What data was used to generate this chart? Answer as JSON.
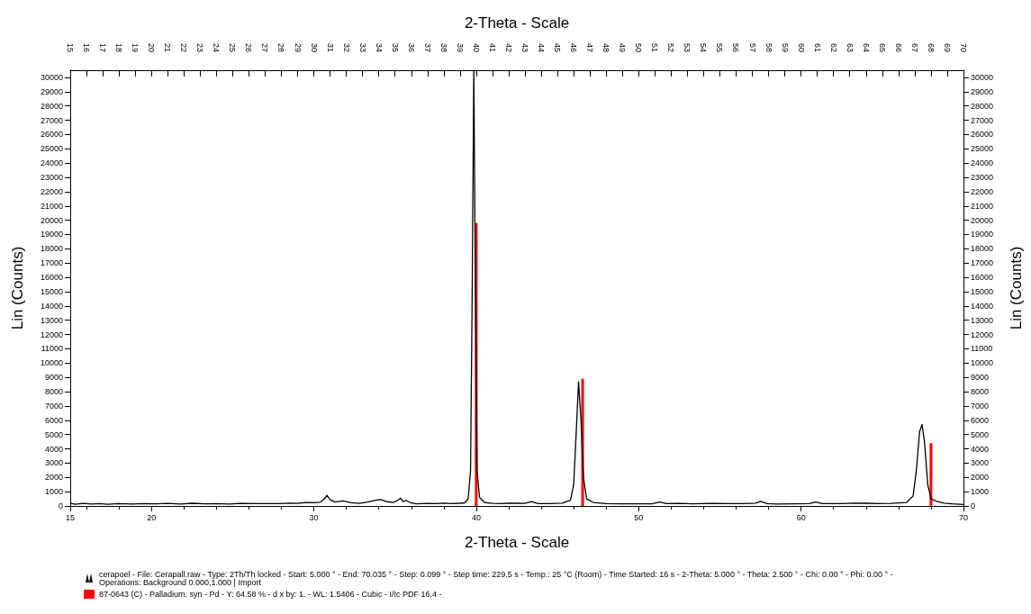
{
  "chart_data": {
    "type": "line",
    "x2label": "2-Theta - Scale",
    "xlabel": "2-Theta - Scale",
    "ylabel": "Lin (Counts)",
    "y2label": "Lin (Counts)",
    "xlim": [
      15,
      70
    ],
    "xticks": [
      15,
      20,
      30,
      40,
      50,
      60,
      70
    ],
    "x2lim": [
      15,
      70
    ],
    "x2ticks": [
      15,
      16,
      17,
      18,
      19,
      20,
      21,
      22,
      23,
      24,
      25,
      26,
      27,
      28,
      29,
      30,
      31,
      32,
      33,
      34,
      35,
      36,
      37,
      38,
      39,
      40,
      41,
      42,
      43,
      44,
      45,
      46,
      47,
      48,
      49,
      50,
      51,
      52,
      53,
      54,
      55,
      56,
      57,
      58,
      59,
      60,
      61,
      62,
      63,
      64,
      65,
      66,
      67,
      68,
      69,
      70
    ],
    "ylim": [
      0,
      30500
    ],
    "yticks": [
      0,
      1000,
      2000,
      3000,
      4000,
      5000,
      6000,
      7000,
      8000,
      9000,
      10000,
      11000,
      12000,
      13000,
      14000,
      15000,
      16000,
      17000,
      18000,
      19000,
      20000,
      21000,
      22000,
      23000,
      24000,
      25000,
      26000,
      27000,
      28000,
      29000,
      30000
    ],
    "y2lim": [
      0,
      30500
    ],
    "y2ticks": [
      0,
      1000,
      2000,
      3000,
      4000,
      5000,
      6000,
      7000,
      8000,
      9000,
      10000,
      11000,
      12000,
      13000,
      14000,
      15000,
      16000,
      17000,
      18000,
      19000,
      20000,
      21000,
      22000,
      23000,
      24000,
      25000,
      26000,
      27000,
      28000,
      29000,
      30000
    ],
    "grid": false,
    "legend": "bottom",
    "marker": "none",
    "line_style": "solid",
    "series": [
      {
        "name": "cerapoel - File: Cerapall.raw - Type: 2Th/Th locked - Start: 5.000 ° - End: 70.035 ° - Step: 0.099 ° - Step time: 229.5 s - Temp.: 25 °C (Room) - Time Started: 16 s - 2-Theta: 5.000 ° - Theta: 2.500 ° - Chi: 0.00 ° - Phi: 0.00 ° - Operations: Background 0.000,1.000 | Import",
        "color": "#000000",
        "x": [
          15,
          15.3,
          15.8,
          16.3,
          16.8,
          17.3,
          18,
          18.8,
          19.5,
          20.3,
          21,
          21.8,
          22.5,
          23.3,
          24,
          24.8,
          25.5,
          26.3,
          27,
          27.8,
          28.5,
          29,
          29.5,
          30,
          30.4,
          30.65,
          30.8,
          31,
          31.3,
          31.8,
          32.3,
          32.8,
          33.3,
          33.8,
          34.1,
          34.5,
          34.9,
          35.2,
          35.35,
          35.5,
          35.7,
          35.9,
          36.3,
          37,
          37.5,
          38,
          38.5,
          39,
          39.3,
          39.5,
          39.65,
          39.75,
          39.85,
          39.95,
          40.05,
          40.2,
          40.5,
          41,
          41.5,
          42,
          42.5,
          43,
          43.4,
          43.8,
          44.5,
          45.3,
          45.8,
          46,
          46.15,
          46.3,
          46.45,
          46.6,
          46.8,
          47.2,
          48,
          49,
          50,
          50.8,
          51.3,
          51.7,
          52.5,
          53.3,
          54.5,
          55.5,
          56.5,
          57.2,
          57.5,
          57.9,
          58.5,
          59.5,
          60.5,
          60.9,
          61.3,
          62.5,
          63.3,
          64,
          64.8,
          65.5,
          66.5,
          66.9,
          67.1,
          67.3,
          67.45,
          67.6,
          67.8,
          68,
          68.4,
          68.8,
          69.3,
          70
        ],
        "values": [
          200,
          120,
          180,
          130,
          170,
          120,
          160,
          130,
          170,
          150,
          180,
          140,
          190,
          150,
          170,
          140,
          180,
          160,
          170,
          160,
          200,
          180,
          250,
          230,
          260,
          500,
          750,
          450,
          280,
          350,
          230,
          180,
          280,
          400,
          450,
          300,
          250,
          420,
          550,
          300,
          380,
          250,
          150,
          180,
          160,
          200,
          170,
          190,
          220,
          500,
          2500,
          15000,
          30500,
          15000,
          2500,
          600,
          250,
          180,
          170,
          190,
          200,
          180,
          300,
          170,
          160,
          200,
          400,
          1500,
          5000,
          8700,
          6000,
          2000,
          500,
          250,
          160,
          150,
          150,
          150,
          280,
          160,
          180,
          150,
          180,
          170,
          160,
          200,
          320,
          170,
          140,
          150,
          160,
          280,
          170,
          160,
          200,
          190,
          160,
          180,
          250,
          700,
          2500,
          5200,
          5700,
          4500,
          1500,
          500,
          300,
          200,
          150,
          100
        ]
      },
      {
        "name": "87-0643 (C) - Palladium, syn - Pd - Y: 64.58 % - d x by: 1. - WL: 1.5406 - Cubic - I/Ic PDF 16.4 -",
        "type": "bar",
        "color": "#ff0000",
        "x": [
          40.0,
          46.55,
          68.0
        ],
        "values": [
          19800,
          8900,
          4400
        ]
      }
    ]
  }
}
